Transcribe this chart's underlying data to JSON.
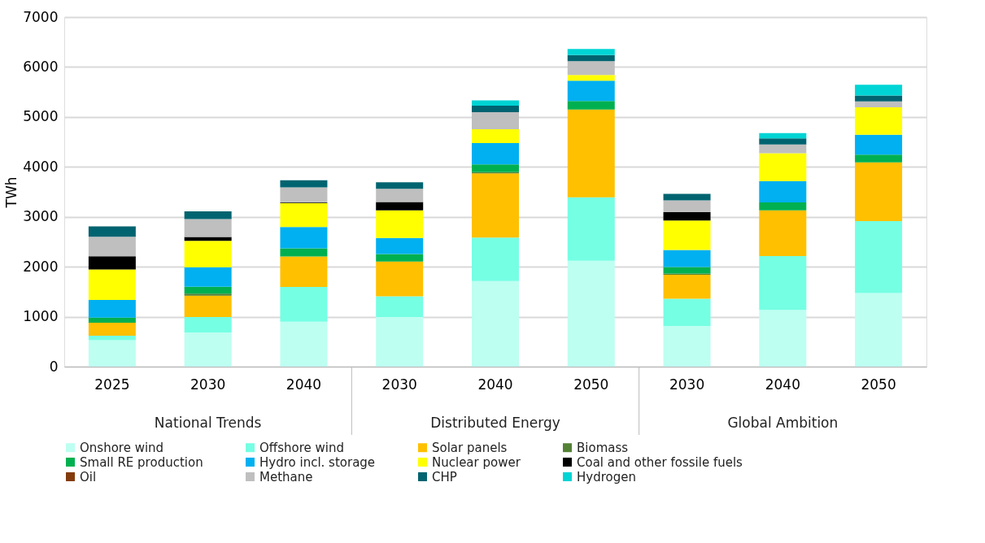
{
  "chart_data": {
    "type": "bar",
    "stacked": true,
    "ylabel": "TWh",
    "categories": [
      "2025",
      "2030",
      "2040",
      "2030",
      "2040",
      "2050",
      "2030",
      "2040",
      "2050"
    ],
    "annotations": [
      "National Trends",
      "Distributed Energy",
      "Global Ambition"
    ],
    "ylim": [
      0,
      7000
    ],
    "yticks": [
      0,
      1000,
      2000,
      3000,
      4000,
      5000,
      6000,
      7000
    ],
    "grid": "y",
    "legend": "bottom",
    "series": [
      {
        "name": "Onshore wind",
        "color": "#bdfff1",
        "values": [
          530,
          685,
          900,
          995,
          1715,
          2120,
          815,
          1135,
          1475
        ]
      },
      {
        "name": "Offshore wind",
        "color": "#75ffe3",
        "values": [
          90,
          310,
          695,
          415,
          870,
          1270,
          545,
          1080,
          1440
        ]
      },
      {
        "name": "Solar panels",
        "color": "#ffc000",
        "values": [
          260,
          425,
          610,
          695,
          1285,
          1760,
          480,
          915,
          1175
        ]
      },
      {
        "name": "Biomass",
        "color": "#538135",
        "values": [
          0,
          40,
          0,
          0,
          25,
          0,
          25,
          0,
          0
        ]
      },
      {
        "name": "Small RE production",
        "color": "#00b050",
        "values": [
          100,
          140,
          165,
          150,
          155,
          170,
          130,
          160,
          155
        ]
      },
      {
        "name": "Hydro incl. storage",
        "color": "#00b0f0",
        "values": [
          355,
          390,
          425,
          320,
          425,
          405,
          340,
          425,
          400
        ]
      },
      {
        "name": "Nuclear power",
        "color": "#ffff00",
        "values": [
          610,
          530,
          480,
          555,
          280,
          115,
          590,
          560,
          550
        ]
      },
      {
        "name": "Coal and other fossile fuels",
        "color": "#000000",
        "values": [
          265,
          75,
          15,
          165,
          0,
          0,
          170,
          0,
          0
        ]
      },
      {
        "name": "Oil",
        "color": "#843c0c",
        "values": [
          0,
          0,
          0,
          0,
          0,
          0,
          0,
          0,
          0
        ]
      },
      {
        "name": "Methane",
        "color": "#bfbfbf",
        "values": [
          390,
          360,
          300,
          265,
          340,
          275,
          235,
          175,
          115
        ]
      },
      {
        "name": "CHP",
        "color": "#006470",
        "values": [
          210,
          155,
          140,
          130,
          130,
          125,
          130,
          120,
          120
        ]
      },
      {
        "name": "Hydrogen",
        "color": "#00d4d4",
        "values": [
          0,
          0,
          0,
          0,
          105,
          120,
          0,
          105,
          215
        ]
      }
    ]
  }
}
